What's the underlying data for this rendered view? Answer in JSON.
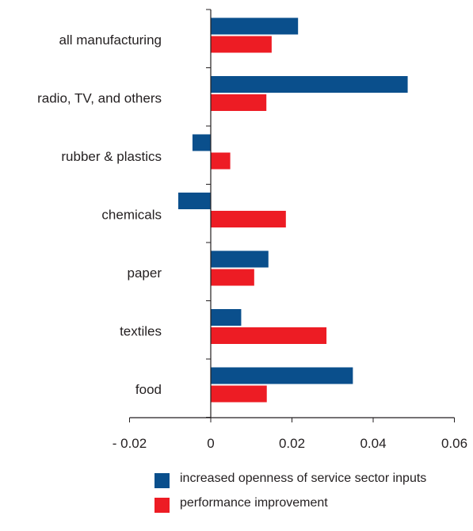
{
  "chart_data": {
    "type": "bar",
    "orientation": "horizontal",
    "categories": [
      "all manufacturing",
      "radio, TV, and others",
      "rubber & plastics",
      "chemicals",
      "paper",
      "textiles",
      "food"
    ],
    "series": [
      {
        "name": "increased openness of service sector inputs",
        "color": "#0a4f8c",
        "values": [
          0.0215,
          0.0485,
          -0.0045,
          -0.008,
          0.0142,
          0.0075,
          0.035
        ]
      },
      {
        "name": "performance improvement",
        "color": "#ed1c24",
        "values": [
          0.015,
          0.0137,
          0.0048,
          0.0185,
          0.0107,
          0.0285,
          0.0138
        ]
      }
    ],
    "xlim": [
      -0.02,
      0.06
    ],
    "xticks": [
      -0.02,
      0,
      0.02,
      0.04,
      0.06
    ],
    "xtick_labels": [
      "- 0.02",
      "0",
      "0.02",
      "0.04",
      "0.06"
    ],
    "title": "",
    "xlabel": "",
    "ylabel": "",
    "grid": false,
    "legend_position": "bottom"
  }
}
